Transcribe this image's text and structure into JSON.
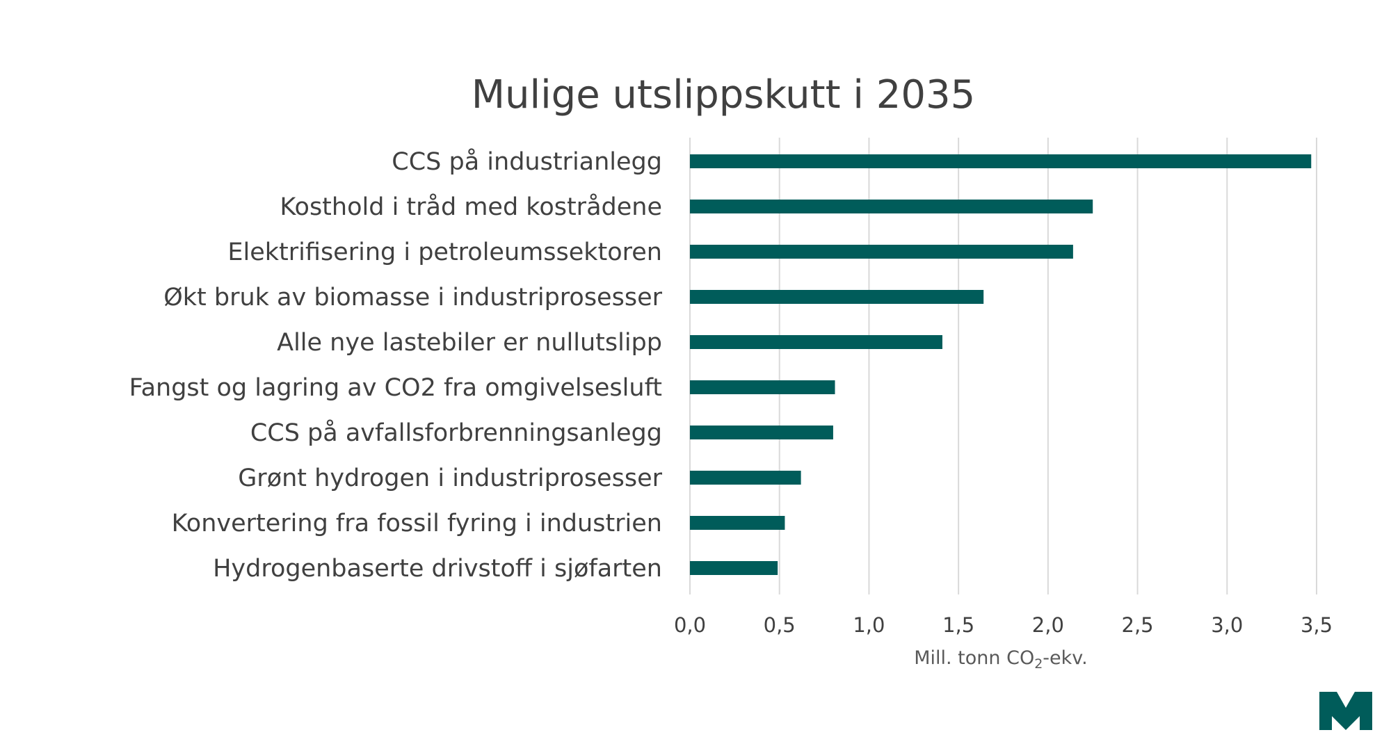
{
  "chart_data": {
    "type": "bar",
    "orientation": "horizontal",
    "title": "Mulige utslippskutt i 2035",
    "categories": [
      "CCS på industrianlegg",
      "Kosthold i tråd med kostrådene",
      "Elektrifisering i petroleumssektoren",
      "Økt bruk av biomasse i industriprosesser",
      "Alle nye lastebiler er nullutslipp",
      "Fangst og lagring av CO2 fra omgivelsesluft",
      "CCS på avfallsforbrenningsanlegg",
      "Grønt hydrogen i industriprosesser",
      "Konvertering fra fossil fyring i industrien",
      "Hydrogenbaserte drivstoff i sjøfarten"
    ],
    "values": [
      3.47,
      2.25,
      2.14,
      1.64,
      1.41,
      0.81,
      0.8,
      0.62,
      0.53,
      0.49
    ],
    "xlabel": {
      "main": "Mill. tonn CO",
      "sub": "2",
      "suffix": "-ekv."
    },
    "xlim": [
      0,
      3.5
    ],
    "xticks": [
      "0,0",
      "0,5",
      "1,0",
      "1,5",
      "2,0",
      "2,5",
      "3,0",
      "3,5"
    ],
    "grid": "vertical",
    "legend": "none",
    "bar_color": "#005c5a"
  },
  "logo": {
    "icon": "logo-icon",
    "color": "#005c5a"
  }
}
